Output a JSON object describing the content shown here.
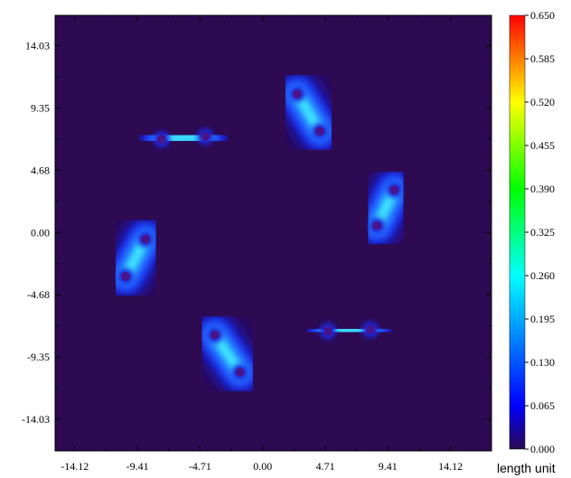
{
  "chart_data": {
    "type": "heatmap",
    "title": "",
    "xlabel": "",
    "ylabel": "",
    "xlim": [
      -15.6,
      17.2
    ],
    "ylim": [
      -16.4,
      16.3
    ],
    "x_ticks": [
      "-14.12",
      "-9.41",
      "-4.71",
      "0.00",
      "4.71",
      "9.41",
      "14.12"
    ],
    "y_ticks": [
      "14.03",
      "9.35",
      "4.68",
      "0.00",
      "-4.68",
      "-9.35",
      "-14.03"
    ],
    "x_tick_values": [
      -14.12,
      -9.41,
      -4.71,
      0.0,
      4.71,
      9.41,
      14.12
    ],
    "y_tick_values": [
      14.03,
      9.35,
      4.68,
      0.0,
      -4.68,
      -9.35,
      -14.03
    ],
    "colorbar": {
      "min": 0.0,
      "max": 0.65,
      "tick_labels": [
        "0.650",
        "0.585",
        "0.520",
        "0.455",
        "0.390",
        "0.325",
        "0.260",
        "0.195",
        "0.130",
        "0.065",
        "0.000"
      ],
      "tick_values": [
        0.65,
        0.585,
        0.52,
        0.455,
        0.39,
        0.325,
        0.26,
        0.195,
        0.13,
        0.065,
        0.0
      ],
      "unit_label": "length unit",
      "colors": [
        "#2d0a52",
        "#0000ff",
        "#00ffff",
        "#00ff00",
        "#ffff00",
        "#ff0000"
      ]
    },
    "background_color": "#2d0a52",
    "lobes": [
      {
        "p1": [
          -7.6,
          7.0
        ],
        "p2": [
          -4.3,
          7.2
        ]
      },
      {
        "p1": [
          2.6,
          10.4
        ],
        "p2": [
          4.3,
          7.6
        ]
      },
      {
        "p1": [
          9.9,
          3.2
        ],
        "p2": [
          8.6,
          0.5
        ]
      },
      {
        "p1": [
          8.1,
          -7.3
        ],
        "p2": [
          4.9,
          -7.4
        ]
      },
      {
        "p1": [
          -1.7,
          -10.5
        ],
        "p2": [
          -3.6,
          -7.7
        ]
      },
      {
        "p1": [
          -10.3,
          -3.3
        ],
        "p2": [
          -8.8,
          -0.5
        ]
      }
    ]
  }
}
